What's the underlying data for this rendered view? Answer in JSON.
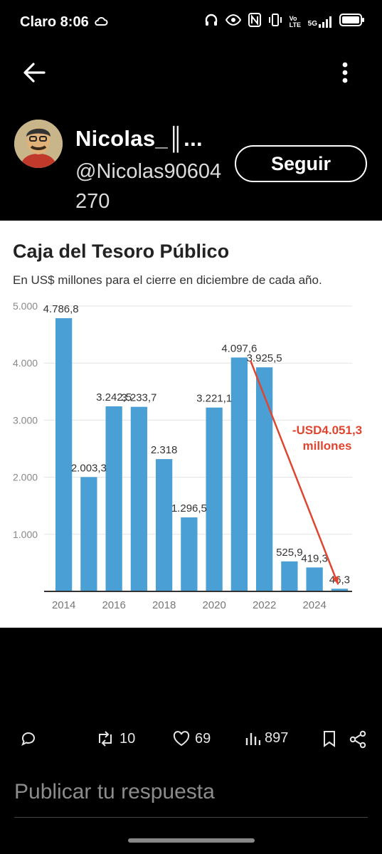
{
  "status_bar": {
    "carrier_time": "Claro 8:06",
    "network": "5G",
    "volte": "Vo LTE"
  },
  "post": {
    "author_name": "Nicolas_║...",
    "author_handle": "@Nicolas90604270",
    "follow_label": "Seguir"
  },
  "chart_data": {
    "type": "bar",
    "title": "Caja del Tesoro Público",
    "subtitle": "En US$ millones para el cierre en diciembre de cada año.",
    "categories": [
      "2014",
      "2015",
      "2016",
      "2017",
      "2018",
      "2019",
      "2020",
      "2021",
      "2022",
      "2023",
      "2024",
      "2025"
    ],
    "values": [
      4786.8,
      2003.3,
      3242.5,
      3233.7,
      2318,
      1296.5,
      3221.1,
      4097.6,
      3925.5,
      525.9,
      419.3,
      46.3
    ],
    "value_labels": [
      "4.786,8",
      "2.003,3",
      "3.242,5",
      "3.233,7",
      "2.318",
      "1.296,5",
      "3.221,1",
      "4.097,6",
      "3.925,5",
      "525,9",
      "419,3",
      "46,3"
    ],
    "x_tick_labels": [
      "2014",
      "2016",
      "2018",
      "2020",
      "2022",
      "2024"
    ],
    "y_ticks": [
      1000,
      2000,
      3000,
      4000,
      5000
    ],
    "y_tick_labels": [
      "1.000",
      "2.000",
      "3.000",
      "4.000",
      "5.000"
    ],
    "ylim": [
      0,
      5000
    ],
    "grid": true,
    "bar_color": "#4a9fd4",
    "annotation": {
      "line1": "-USD4.051,3",
      "line2": "millones",
      "color": "#e0452f",
      "from_category": "2021",
      "to_category": "2025"
    }
  },
  "actions": {
    "retweets": "10",
    "likes": "69",
    "views": "897"
  },
  "reply_placeholder": "Publicar tu respuesta"
}
